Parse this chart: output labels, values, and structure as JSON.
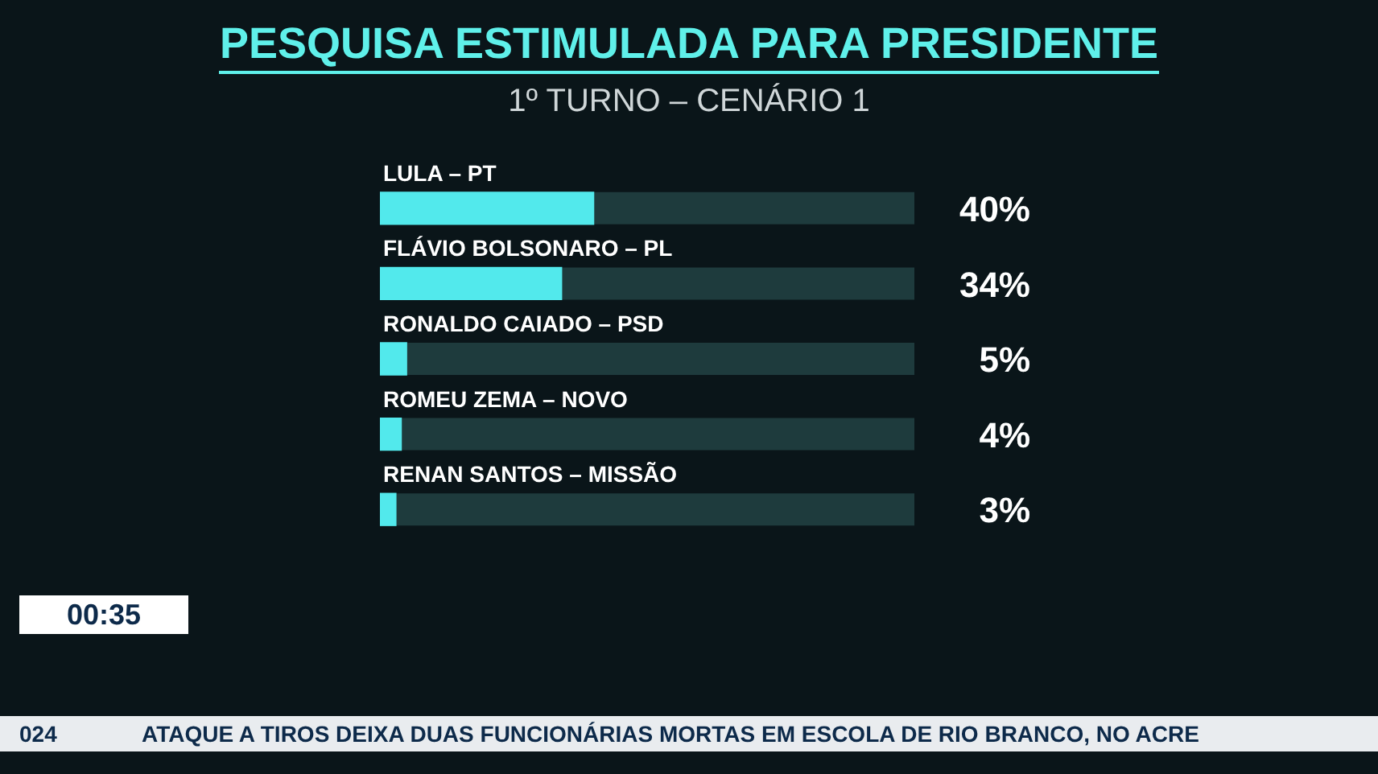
{
  "chart_data": {
    "type": "bar",
    "orientation": "horizontal",
    "title": "PESQUISA ESTIMULADA PARA PRESIDENTE",
    "subtitle": "1º TURNO – CENÁRIO 1",
    "categories": [
      "LULA – PT",
      "FLÁVIO BOLSONARO – PL",
      "RONALDO CAIADO – PSD",
      "ROMEU ZEMA – NOVO",
      "RENAN SANTOS – MISSÃO"
    ],
    "values": [
      40,
      34,
      5,
      4,
      3
    ],
    "value_labels": [
      "40%",
      "34%",
      "5%",
      "4%",
      "3%"
    ],
    "color": "#52e9ec",
    "xlim": [
      0,
      100
    ],
    "tick_labels": false,
    "legend": false,
    "annotations": [
      "00:35",
      "024",
      "ATAQUE A TIROS DEIXA DUAS FUNCIONÁRIAS MORTAS EM ESCOLA DE RIO BRANCO, NO ACRE"
    ]
  }
}
